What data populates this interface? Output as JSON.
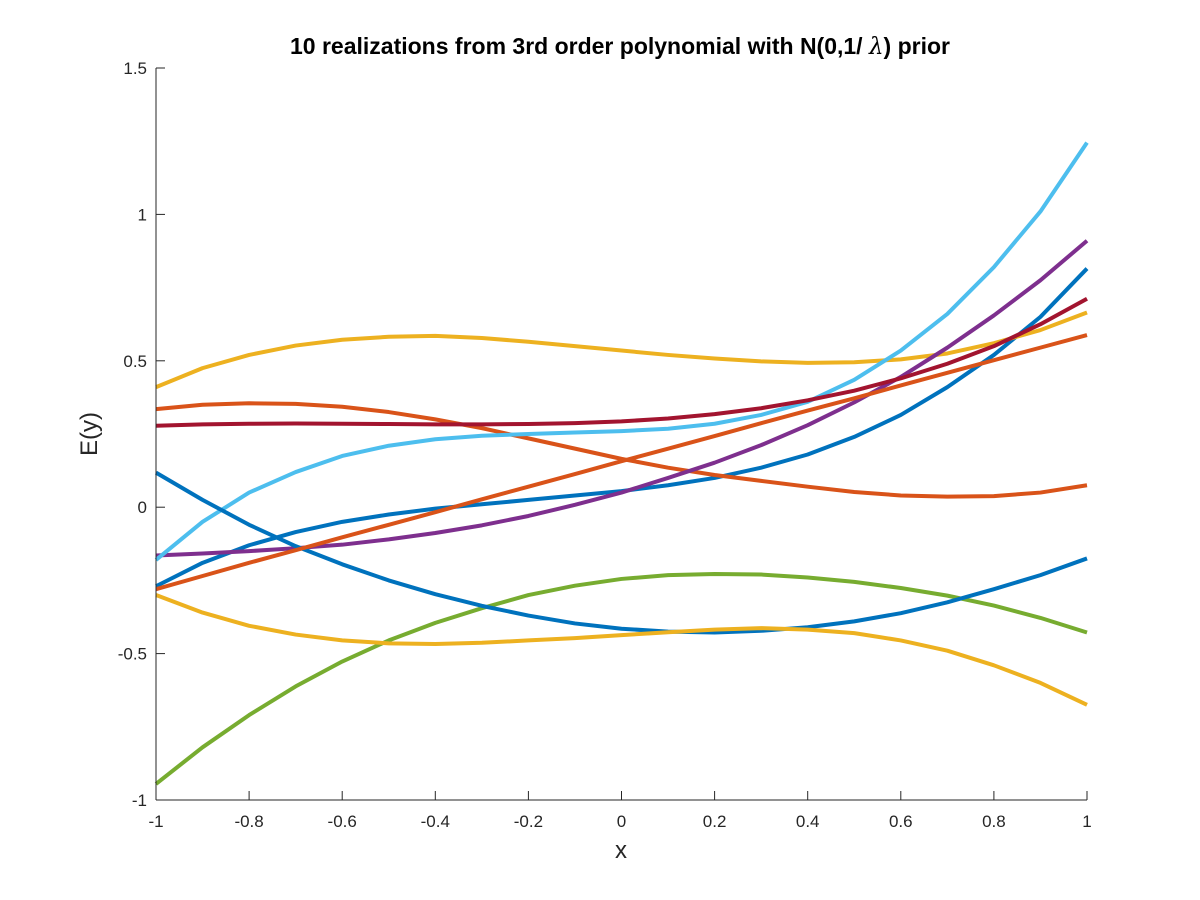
{
  "chart_data": {
    "type": "line",
    "title": "10 realizations from 3rd order polynomial with N(0,1/ λ) prior",
    "title_parts": {
      "before": "10 realizations from 3rd order polynomial with N(0,1/ ",
      "symbol": "λ",
      "after": ") prior"
    },
    "xlabel": "x",
    "ylabel": "E(y)",
    "xlim": [
      -1,
      1
    ],
    "ylim": [
      -1,
      1.5
    ],
    "grid": false,
    "legend": "none",
    "xticks": [
      {
        "value": -1,
        "label": "-1"
      },
      {
        "value": -0.8,
        "label": "-0.8"
      },
      {
        "value": -0.6,
        "label": "-0.6"
      },
      {
        "value": -0.4,
        "label": "-0.4"
      },
      {
        "value": -0.2,
        "label": "-0.2"
      },
      {
        "value": 0,
        "label": "0"
      },
      {
        "value": 0.2,
        "label": "0.2"
      },
      {
        "value": 0.4,
        "label": "0.4"
      },
      {
        "value": 0.6,
        "label": "0.6"
      },
      {
        "value": 0.8,
        "label": "0.8"
      },
      {
        "value": 1,
        "label": "1"
      }
    ],
    "yticks": [
      {
        "value": -1,
        "label": "-1"
      },
      {
        "value": -0.5,
        "label": "-0.5"
      },
      {
        "value": 0,
        "label": "0"
      },
      {
        "value": 0.5,
        "label": "0.5"
      },
      {
        "value": 1,
        "label": "1"
      },
      {
        "value": 1.5,
        "label": "1.5"
      }
    ],
    "x": [
      -1,
      -0.9,
      -0.8,
      -0.7,
      -0.6,
      -0.5,
      -0.4,
      -0.3,
      -0.2,
      -0.1,
      0,
      0.1,
      0.2,
      0.3,
      0.4,
      0.5,
      0.6,
      0.7,
      0.8,
      0.9,
      1
    ],
    "series": [
      {
        "color": "#0072BD",
        "values": [
          -0.27,
          -0.19,
          -0.13,
          -0.085,
          -0.05,
          -0.025,
          -0.005,
          0.01,
          0.025,
          0.04,
          0.055,
          0.075,
          0.1,
          0.135,
          0.18,
          0.24,
          0.315,
          0.41,
          0.52,
          0.65,
          0.815
        ]
      },
      {
        "color": "#D95319",
        "values": [
          0.335,
          0.35,
          0.355,
          0.353,
          0.343,
          0.325,
          0.3,
          0.27,
          0.235,
          0.2,
          0.165,
          0.135,
          0.11,
          0.09,
          0.07,
          0.052,
          0.04,
          0.036,
          0.038,
          0.05,
          0.075
        ]
      },
      {
        "color": "#EDB120",
        "values": [
          0.41,
          0.475,
          0.52,
          0.552,
          0.572,
          0.582,
          0.585,
          0.578,
          0.565,
          0.55,
          0.535,
          0.52,
          0.508,
          0.498,
          0.493,
          0.495,
          0.505,
          0.525,
          0.56,
          0.605,
          0.665
        ]
      },
      {
        "color": "#7E2F8E",
        "values": [
          -0.165,
          -0.158,
          -0.15,
          -0.14,
          -0.128,
          -0.11,
          -0.088,
          -0.062,
          -0.03,
          0.008,
          0.05,
          0.1,
          0.152,
          0.212,
          0.28,
          0.358,
          0.445,
          0.545,
          0.655,
          0.775,
          0.91
        ]
      },
      {
        "color": "#77AC30",
        "values": [
          -0.945,
          -0.82,
          -0.71,
          -0.612,
          -0.527,
          -0.455,
          -0.395,
          -0.345,
          -0.3,
          -0.268,
          -0.245,
          -0.232,
          -0.228,
          -0.23,
          -0.24,
          -0.255,
          -0.276,
          -0.302,
          -0.336,
          -0.378,
          -0.428
        ]
      },
      {
        "color": "#4DBEEE",
        "values": [
          -0.18,
          -0.05,
          0.05,
          0.12,
          0.175,
          0.21,
          0.232,
          0.244,
          0.25,
          0.255,
          0.26,
          0.268,
          0.285,
          0.315,
          0.36,
          0.435,
          0.535,
          0.66,
          0.82,
          1.01,
          1.245
        ]
      },
      {
        "color": "#A2142F",
        "values": [
          0.278,
          0.283,
          0.285,
          0.286,
          0.285,
          0.284,
          0.283,
          0.283,
          0.284,
          0.287,
          0.293,
          0.303,
          0.318,
          0.338,
          0.365,
          0.398,
          0.44,
          0.49,
          0.55,
          0.625,
          0.712
        ]
      },
      {
        "color": "#0072BD",
        "values": [
          0.118,
          0.025,
          -0.06,
          -0.133,
          -0.195,
          -0.25,
          -0.297,
          -0.337,
          -0.37,
          -0.397,
          -0.415,
          -0.425,
          -0.428,
          -0.422,
          -0.41,
          -0.39,
          -0.362,
          -0.325,
          -0.28,
          -0.232,
          -0.175
        ]
      },
      {
        "color": "#D95319",
        "values": [
          -0.28,
          -0.235,
          -0.19,
          -0.147,
          -0.103,
          -0.06,
          -0.017,
          0.027,
          0.07,
          0.113,
          0.157,
          0.2,
          0.243,
          0.287,
          0.33,
          0.372,
          0.416,
          0.459,
          0.502,
          0.545,
          0.588
        ]
      },
      {
        "color": "#EDB120",
        "values": [
          -0.3,
          -0.36,
          -0.405,
          -0.435,
          -0.455,
          -0.465,
          -0.467,
          -0.463,
          -0.455,
          -0.447,
          -0.437,
          -0.427,
          -0.418,
          -0.413,
          -0.418,
          -0.43,
          -0.455,
          -0.49,
          -0.54,
          -0.6,
          -0.675
        ]
      }
    ]
  }
}
